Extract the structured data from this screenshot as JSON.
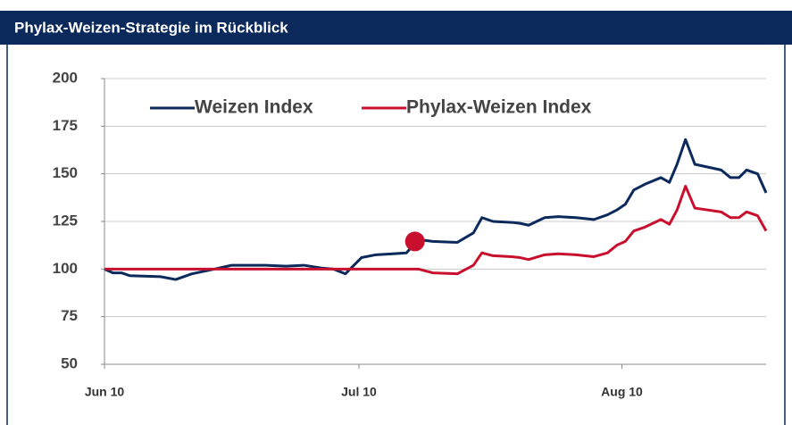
{
  "chart_data": {
    "type": "line",
    "title": "Phylax-Weizen-Strategie im Rückblick",
    "x": [
      0,
      1,
      2,
      3,
      6.6,
      8.4,
      10.3,
      13,
      15,
      19,
      21.4,
      23.5,
      25.6,
      27,
      28.4,
      30.3,
      32,
      34,
      35.6,
      37,
      38.7,
      41.6,
      43.5,
      44.5,
      45.8,
      48,
      49,
      50,
      51.9,
      53.5,
      55.6,
      57.7,
      59.3,
      60.4,
      61.4,
      62.4,
      63.7,
      65.6,
      66.6,
      67.5,
      68.5,
      69.6,
      72.7,
      73.8,
      74.8,
      75.7,
      77,
      78
    ],
    "series": [
      {
        "name": "Weizen Index",
        "color": "#0b2a5b",
        "values": [
          100,
          98,
          98,
          96.5,
          96,
          94.5,
          97.5,
          100,
          102,
          102,
          101.5,
          102,
          100.5,
          100,
          97.5,
          106,
          107.5,
          108,
          108.5,
          115.5,
          114.5,
          114,
          119,
          127,
          125,
          124.5,
          124,
          123,
          127,
          127.5,
          127,
          126,
          128.5,
          131,
          134,
          141.5,
          144.5,
          148,
          145.5,
          155,
          168,
          155,
          152,
          148,
          148,
          152,
          150,
          140
        ]
      },
      {
        "name": "Phylax-Weizen Index",
        "color": "#c8102e",
        "values": [
          100,
          100,
          100,
          100,
          100,
          100,
          100,
          100,
          100,
          100,
          100,
          100,
          100,
          100,
          100,
          100,
          100,
          100,
          100,
          100,
          98,
          97.5,
          102,
          108.5,
          107,
          106.5,
          106,
          105,
          107.5,
          108,
          107.5,
          106.5,
          108.5,
          112.5,
          114.5,
          120,
          122,
          126,
          123.5,
          131,
          143.5,
          132,
          130,
          127,
          127,
          130,
          128,
          120
        ]
      }
    ],
    "marker": {
      "x": 36.6,
      "y": 114.5,
      "color": "#c8102e"
    },
    "xlim": [
      0,
      78
    ],
    "xticks": [
      {
        "value": 0,
        "label": "Jun 10"
      },
      {
        "value": 30,
        "label": "Jul 10"
      },
      {
        "value": 61,
        "label": "Aug 10"
      }
    ],
    "ylim": [
      50,
      200
    ],
    "yticks": [
      50,
      75,
      100,
      125,
      150,
      175,
      200
    ],
    "grid": true,
    "legend": "top"
  }
}
